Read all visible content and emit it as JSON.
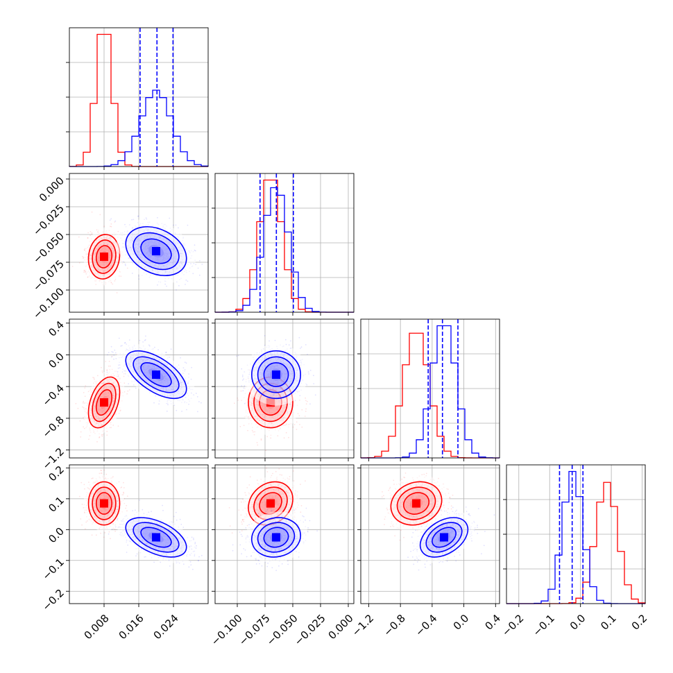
{
  "chart_data": {
    "type": "corner",
    "grid": true,
    "parameters": [
      {
        "range": [
          0.0,
          0.032
        ],
        "ticks": [
          "0.008",
          "0.016",
          "0.024"
        ],
        "tick_values": [
          0.008,
          0.016,
          0.024
        ]
      },
      {
        "range": [
          -0.12,
          0.005
        ],
        "ticks": [
          "0.000",
          "−0.025",
          "−0.050",
          "−0.075",
          "−0.100"
        ],
        "tick_values": [
          0.0,
          -0.025,
          -0.05,
          -0.075,
          -0.1
        ]
      },
      {
        "range": [
          -1.3,
          0.45
        ],
        "ticks": [
          "0.4",
          "0.0",
          "−0.4",
          "−0.8",
          "−1.2"
        ],
        "tick_values": [
          0.4,
          0.0,
          -0.4,
          -0.8,
          -1.2
        ]
      },
      {
        "range": [
          -0.24,
          0.21
        ],
        "ticks": [
          "0.2",
          "0.1",
          "0.0",
          "−0.1",
          "−0.2"
        ],
        "tick_values": [
          0.2,
          0.1,
          0.0,
          -0.1,
          -0.2
        ]
      }
    ],
    "bottom_ticks": [
      {
        "labels": [
          "0.008",
          "0.016",
          "0.024"
        ],
        "values": [
          0.008,
          0.016,
          0.024
        ]
      },
      {
        "labels": [
          "−0.100",
          "−0.075",
          "−0.050",
          "−0.025",
          "0.000"
        ],
        "values": [
          -0.1,
          -0.075,
          -0.05,
          -0.025,
          0.0
        ]
      },
      {
        "labels": [
          "−1.2",
          "−0.8",
          "−0.4",
          "0.0",
          "0.4"
        ],
        "values": [
          -1.2,
          -0.8,
          -0.4,
          0.0,
          0.4
        ]
      },
      {
        "labels": [
          "−0.2",
          "−0.1",
          "0.0",
          "0.1",
          "0.2"
        ],
        "values": [
          -0.2,
          -0.1,
          0.0,
          0.1,
          0.2
        ]
      }
    ],
    "series": [
      {
        "color": "#ff0000",
        "mean": [
          0.008,
          -0.07,
          -0.6,
          0.085
        ],
        "sd": [
          0.0018,
          0.01,
          0.16,
          0.035
        ],
        "corr": {
          "0-1": 0.1,
          "0-2": 0.4,
          "0-3": 0.0,
          "1-2": 0.0,
          "1-3": 0.2,
          "2-3": 0.15
        }
      },
      {
        "color": "#0000ff",
        "mean": [
          0.02,
          -0.065,
          -0.25,
          -0.025
        ],
        "sd": [
          0.0035,
          0.011,
          0.15,
          0.032
        ],
        "corr": {
          "0-1": -0.3,
          "0-2": -0.6,
          "0-3": -0.5,
          "1-2": 0.0,
          "1-3": 0.1,
          "2-3": 0.4
        },
        "quantiles": [
          [
            0.0163,
            0.0202,
            0.0239
          ],
          [
            -0.0795,
            -0.0648,
            -0.0495
          ],
          [
            -0.45,
            -0.27,
            -0.075
          ],
          [
            -0.068,
            -0.027,
            0.008
          ]
        ]
      }
    ],
    "histogram_bins": 20
  }
}
